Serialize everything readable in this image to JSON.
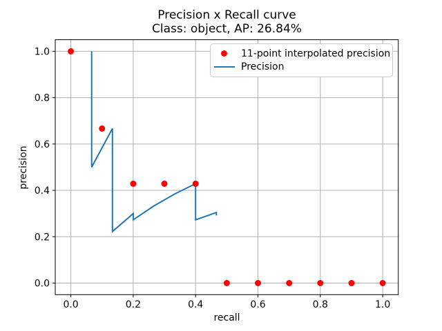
{
  "chart_data": {
    "type": "line",
    "title_line1": "Precision x Recall curve",
    "title_line2": "Class: object, AP: 26.84%",
    "xlabel": "recall",
    "ylabel": "precision",
    "xlim": [
      -0.05,
      1.05
    ],
    "ylim": [
      -0.05,
      1.05
    ],
    "x_tick_labels": [
      "0.0",
      "0.2",
      "0.4",
      "0.6",
      "0.8",
      "1.0"
    ],
    "y_tick_labels": [
      "0.0",
      "0.2",
      "0.4",
      "0.6",
      "0.8",
      "1.0"
    ],
    "grid": true,
    "grid_color": "#b0b0b0",
    "spine_color": "#000000",
    "background_color": "#ffffff",
    "legend_position": "upper right",
    "series": [
      {
        "name": "11-point interpolated precision",
        "type": "scatter",
        "color": "#ff0000",
        "marker": "circle",
        "points": [
          [
            0.0,
            1.0
          ],
          [
            0.1,
            0.6667
          ],
          [
            0.2,
            0.4286
          ],
          [
            0.3,
            0.4286
          ],
          [
            0.4,
            0.4286
          ],
          [
            0.5,
            0.0
          ],
          [
            0.6,
            0.0
          ],
          [
            0.7,
            0.0
          ],
          [
            0.8,
            0.0
          ],
          [
            0.9,
            0.0
          ],
          [
            1.0,
            0.0
          ]
        ]
      },
      {
        "name": "Precision",
        "type": "line",
        "color": "#1f77b4",
        "points": [
          [
            0.0667,
            1.0
          ],
          [
            0.0667,
            0.5
          ],
          [
            0.1333,
            0.6667
          ],
          [
            0.1333,
            0.2222
          ],
          [
            0.2,
            0.3
          ],
          [
            0.2,
            0.2727
          ],
          [
            0.2667,
            0.3333
          ],
          [
            0.3333,
            0.3846
          ],
          [
            0.4,
            0.4286
          ],
          [
            0.4,
            0.2727
          ],
          [
            0.4667,
            0.3043
          ],
          [
            0.4667,
            0.2917
          ]
        ]
      }
    ]
  }
}
